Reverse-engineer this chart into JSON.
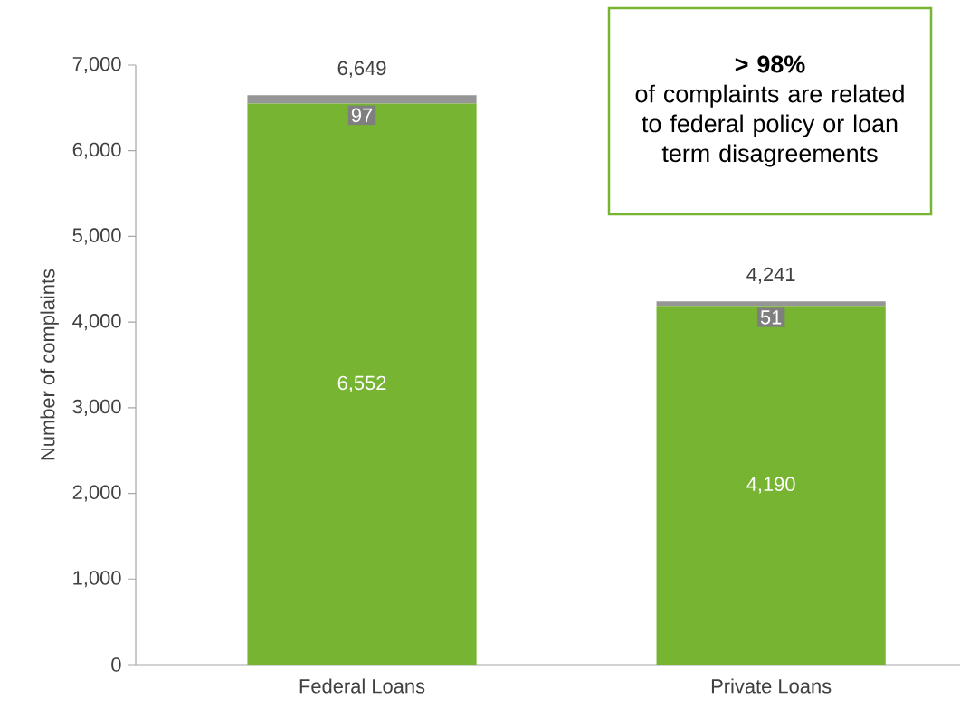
{
  "chart_data": {
    "type": "bar",
    "stacked": true,
    "ylabel": "Number of complaints",
    "categories": [
      "Federal Loans",
      "Private Loans"
    ],
    "series": [
      {
        "color": "#76b431",
        "values": [
          6552,
          4190
        ],
        "value_labels": [
          "6,552",
          "4,190"
        ]
      },
      {
        "color": "#969696",
        "values": [
          97,
          51
        ],
        "value_labels": [
          "97",
          "51"
        ]
      }
    ],
    "totals": [
      "6,649",
      "4,241"
    ],
    "ylim": [
      0,
      7000
    ],
    "yticks": [
      {
        "value": 0,
        "label": "0"
      },
      {
        "value": 1000,
        "label": "1,000"
      },
      {
        "value": 2000,
        "label": "2,000"
      },
      {
        "value": 3000,
        "label": "3,000"
      },
      {
        "value": 4000,
        "label": "4,000"
      },
      {
        "value": 5000,
        "label": "5,000"
      },
      {
        "value": 6000,
        "label": "6,000"
      },
      {
        "value": 7000,
        "label": "7,000"
      }
    ],
    "annotations": [
      "**> 98%**",
      "of complaints are related to federal policy or loan term disagreements"
    ]
  }
}
